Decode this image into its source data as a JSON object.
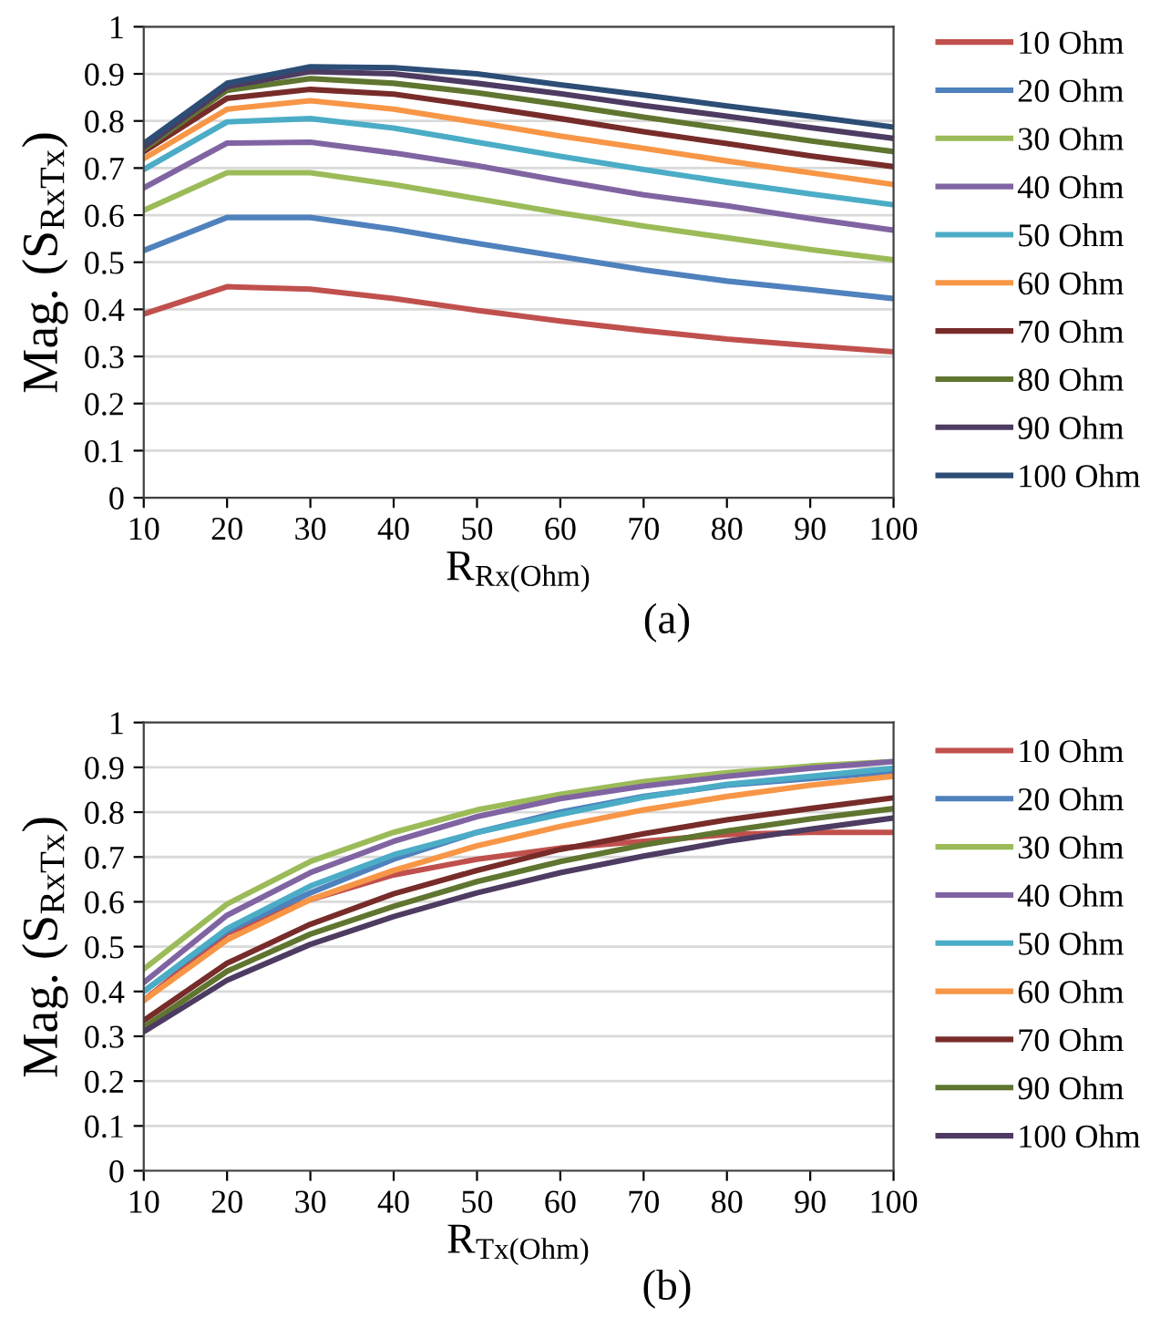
{
  "chart_data": [
    {
      "type": "line",
      "xlabel": "R$_{Rx(Ohm)}$",
      "ylabel": "Mag. (S$_{RxTx}$)",
      "annotations": [
        "(a)"
      ],
      "x": [
        10,
        20,
        30,
        40,
        50,
        60,
        70,
        80,
        90,
        100
      ],
      "xlim": [
        10,
        100
      ],
      "xticks": [
        10,
        20,
        30,
        40,
        50,
        60,
        70,
        80,
        90,
        100
      ],
      "ylim": [
        0,
        1
      ],
      "yticks": [
        0,
        0.1,
        0.2,
        0.3,
        0.4,
        0.5,
        0.6,
        0.7,
        0.8,
        0.9,
        1
      ],
      "grid": "y",
      "legend": "right",
      "marker": "none",
      "line_style": "solid",
      "series": [
        {
          "name": "10 Ohm",
          "color": "#c0504d",
          "values": [
            0.39,
            0.448,
            0.443,
            0.423,
            0.398,
            0.375,
            0.355,
            0.337,
            0.323,
            0.31
          ]
        },
        {
          "name": "20 Ohm",
          "color": "#4f81bd",
          "values": [
            0.525,
            0.595,
            0.595,
            0.57,
            0.54,
            0.512,
            0.484,
            0.46,
            0.442,
            0.423
          ]
        },
        {
          "name": "30 Ohm",
          "color": "#9bbb59",
          "values": [
            0.61,
            0.69,
            0.69,
            0.665,
            0.635,
            0.605,
            0.577,
            0.552,
            0.527,
            0.505
          ]
        },
        {
          "name": "40 Ohm",
          "color": "#8064a2",
          "values": [
            0.658,
            0.753,
            0.755,
            0.732,
            0.705,
            0.673,
            0.643,
            0.62,
            0.593,
            0.568
          ]
        },
        {
          "name": "50 Ohm",
          "color": "#4bacc6",
          "values": [
            0.697,
            0.798,
            0.805,
            0.785,
            0.755,
            0.725,
            0.697,
            0.67,
            0.645,
            0.622
          ]
        },
        {
          "name": "60 Ohm",
          "color": "#f79646",
          "values": [
            0.72,
            0.825,
            0.843,
            0.825,
            0.797,
            0.768,
            0.742,
            0.715,
            0.69,
            0.665
          ]
        },
        {
          "name": "70 Ohm",
          "color": "#772c2a",
          "values": [
            0.735,
            0.848,
            0.867,
            0.857,
            0.832,
            0.805,
            0.777,
            0.752,
            0.726,
            0.703
          ]
        },
        {
          "name": "80 Ohm",
          "color": "#5f7530",
          "values": [
            0.74,
            0.865,
            0.89,
            0.88,
            0.86,
            0.835,
            0.808,
            0.783,
            0.758,
            0.735
          ]
        },
        {
          "name": "90 Ohm",
          "color": "#4d3b62",
          "values": [
            0.745,
            0.873,
            0.905,
            0.9,
            0.88,
            0.858,
            0.833,
            0.81,
            0.786,
            0.763
          ]
        },
        {
          "name": "100 Ohm",
          "color": "#2c4d75",
          "values": [
            0.752,
            0.88,
            0.915,
            0.913,
            0.9,
            0.877,
            0.855,
            0.832,
            0.81,
            0.787
          ]
        }
      ]
    },
    {
      "type": "line",
      "xlabel": "R$_{Tx(Ohm)}$",
      "ylabel": "Mag. (S$_{RxTx}$)",
      "annotations": [
        "(b)"
      ],
      "x": [
        10,
        20,
        30,
        40,
        50,
        60,
        70,
        80,
        90,
        100
      ],
      "xlim": [
        10,
        100
      ],
      "xticks": [
        10,
        20,
        30,
        40,
        50,
        60,
        70,
        80,
        90,
        100
      ],
      "ylim": [
        0,
        1
      ],
      "yticks": [
        0,
        0.1,
        0.2,
        0.3,
        0.4,
        0.5,
        0.6,
        0.7,
        0.8,
        0.9,
        1
      ],
      "grid": "y",
      "legend": "right",
      "marker": "none",
      "line_style": "solid",
      "series": [
        {
          "name": "10 Ohm",
          "color": "#c0504d",
          "values": [
            0.38,
            0.53,
            0.605,
            0.66,
            0.695,
            0.72,
            0.735,
            0.75,
            0.755,
            0.755
          ]
        },
        {
          "name": "20 Ohm",
          "color": "#4f81bd",
          "values": [
            0.4,
            0.535,
            0.62,
            0.695,
            0.755,
            0.8,
            0.835,
            0.86,
            0.875,
            0.89
          ]
        },
        {
          "name": "30 Ohm",
          "color": "#9bbb59",
          "values": [
            0.45,
            0.595,
            0.69,
            0.755,
            0.805,
            0.84,
            0.868,
            0.888,
            0.903,
            0.913
          ]
        },
        {
          "name": "40 Ohm",
          "color": "#8064a2",
          "values": [
            0.42,
            0.57,
            0.665,
            0.735,
            0.79,
            0.83,
            0.858,
            0.88,
            0.898,
            0.913
          ]
        },
        {
          "name": "50 Ohm",
          "color": "#4bacc6",
          "values": [
            0.4,
            0.54,
            0.635,
            0.705,
            0.755,
            0.795,
            0.833,
            0.862,
            0.88,
            0.898
          ]
        },
        {
          "name": "60 Ohm",
          "color": "#f79646",
          "values": [
            0.38,
            0.515,
            0.605,
            0.67,
            0.725,
            0.768,
            0.805,
            0.835,
            0.86,
            0.88
          ]
        },
        {
          "name": "70 Ohm",
          "color": "#772c2a",
          "values": [
            0.335,
            0.463,
            0.55,
            0.618,
            0.67,
            0.717,
            0.752,
            0.783,
            0.808,
            0.832
          ]
        },
        {
          "name": "90 Ohm",
          "color": "#5f7530",
          "values": [
            0.32,
            0.445,
            0.528,
            0.59,
            0.645,
            0.69,
            0.727,
            0.758,
            0.785,
            0.808
          ]
        },
        {
          "name": "100 Ohm",
          "color": "#4d3b62",
          "values": [
            0.31,
            0.425,
            0.505,
            0.567,
            0.62,
            0.665,
            0.702,
            0.735,
            0.762,
            0.787
          ]
        }
      ]
    }
  ]
}
